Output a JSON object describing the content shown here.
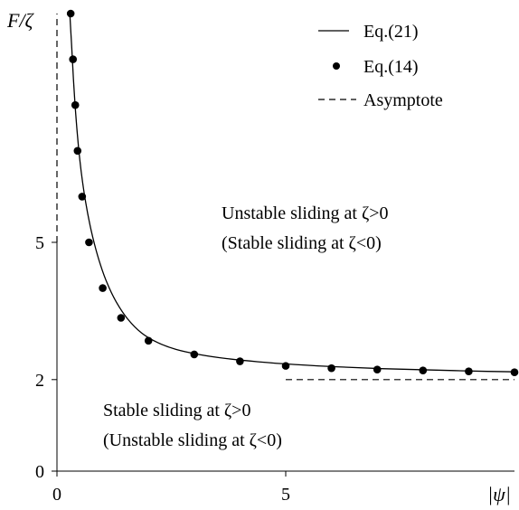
{
  "chart_data": {
    "type": "line",
    "xlabel": "|ψ|",
    "ylabel": "F/ζ",
    "xlim": [
      0,
      10
    ],
    "ylim": [
      0,
      10
    ],
    "x_ticks": [
      {
        "value": 0,
        "label": "0"
      },
      {
        "value": 5,
        "label": "5"
      }
    ],
    "y_ticks": [
      {
        "value": 0,
        "label": "0"
      },
      {
        "value": 2,
        "label": "2"
      },
      {
        "value": 5,
        "label": "5"
      }
    ],
    "legend": {
      "placement": "top-right",
      "entries": [
        {
          "label": "Eq.(21)",
          "style": "solid-line"
        },
        {
          "label": "Eq.(14)",
          "style": "filled-dot"
        },
        {
          "label": "Asymptote",
          "style": "dashed-line"
        }
      ]
    },
    "series": [
      {
        "name": "Eq.(21)",
        "style": "line",
        "color": "#000000",
        "x": [
          0.28,
          0.32,
          0.36,
          0.4,
          0.45,
          0.5,
          0.56,
          0.63,
          0.72,
          0.82,
          0.95,
          1.1,
          1.3,
          1.55,
          1.85,
          2.2,
          2.6,
          3.1,
          3.7,
          4.4,
          5.2,
          6.1,
          7.1,
          8.2,
          9.4,
          10.0
        ],
        "y": [
          10.0,
          9.31,
          8.57,
          7.95,
          7.31,
          6.8,
          6.32,
          5.86,
          5.39,
          4.96,
          4.51,
          4.1,
          3.69,
          3.32,
          3.02,
          2.81,
          2.66,
          2.55,
          2.46,
          2.39,
          2.33,
          2.28,
          2.24,
          2.21,
          2.18,
          2.17
        ]
      },
      {
        "name": "Eq.(14)",
        "style": "markers",
        "color": "#000000",
        "x": [
          0.3,
          0.35,
          0.4,
          0.45,
          0.55,
          0.7,
          1.0,
          1.4,
          2.0,
          3.0,
          4.0,
          5.0,
          6.0,
          7.0,
          8.0,
          9.0,
          10.0
        ],
        "y": [
          10.0,
          9.0,
          8.0,
          7.0,
          6.0,
          5.0,
          4.0,
          3.35,
          2.85,
          2.55,
          2.4,
          2.3,
          2.25,
          2.22,
          2.2,
          2.18,
          2.16
        ]
      }
    ],
    "asymptotes": [
      {
        "label": "Asymptote",
        "orientation": "vertical",
        "x": 0,
        "y_range": [
          5.0,
          10.0
        ],
        "style": "dashed"
      },
      {
        "label": "Asymptote",
        "orientation": "horizontal",
        "y": 2,
        "x_range": [
          5.0,
          10.0
        ],
        "style": "dashed"
      }
    ],
    "annotations": [
      {
        "lines": [
          "Unstable sliding at ζ>0",
          "(Stable sliding at ζ<0)"
        ],
        "x": 3.6,
        "y": 5.6
      },
      {
        "lines": [
          "Stable sliding at ζ>0",
          "(Unstable sliding at ζ<0)"
        ],
        "x": 1.0,
        "y": 1.35
      }
    ],
    "grid": false
  }
}
